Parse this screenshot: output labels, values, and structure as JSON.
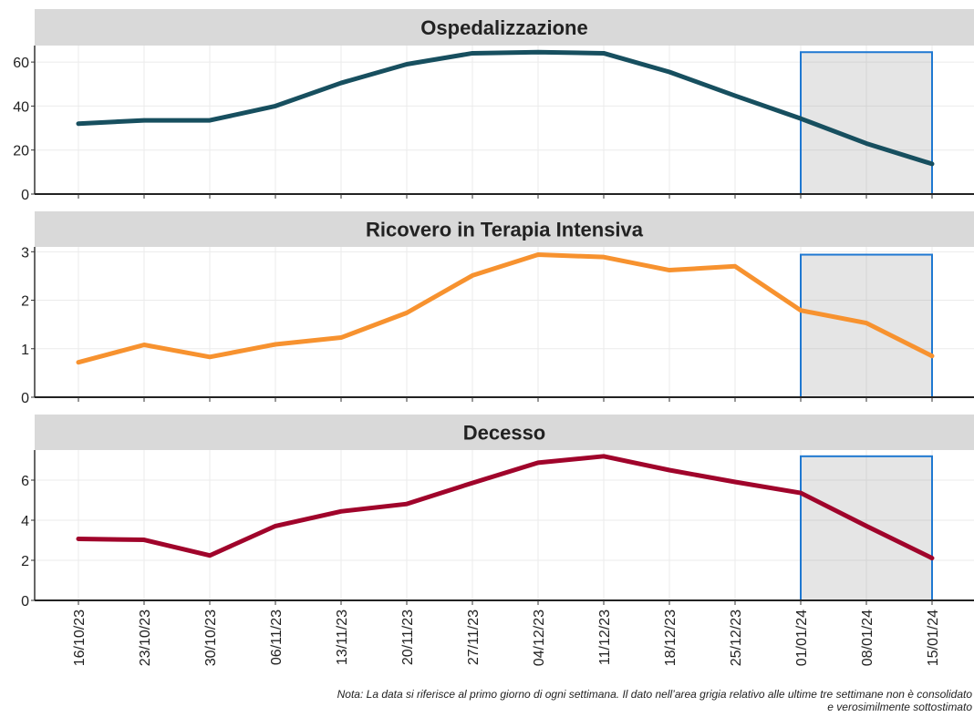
{
  "chart_data": [
    {
      "type": "line",
      "title": "Ospedalizzazione",
      "color": "#174f5f",
      "values": [
        32,
        33.5,
        33.5,
        40,
        50.5,
        59,
        64,
        64.5,
        64,
        55.5,
        44.7,
        34.3,
        23,
        13.7
      ],
      "ylim": [
        0,
        67.5
      ],
      "yticks": [
        0,
        20,
        40,
        60
      ],
      "grid": true
    },
    {
      "type": "line",
      "title": "Ricovero in Terapia Intensiva",
      "color": "#f7922f",
      "values": [
        0.72,
        1.08,
        0.83,
        1.09,
        1.23,
        1.74,
        2.51,
        2.94,
        2.89,
        2.62,
        2.7,
        1.79,
        1.53,
        0.85
      ],
      "ylim": [
        0,
        3.1
      ],
      "yticks": [
        0,
        1,
        2,
        3
      ],
      "grid": true
    },
    {
      "type": "line",
      "title": "Decesso",
      "color": "#a0042b",
      "categories": [
        "16/10/23",
        "23/10/23",
        "30/10/23",
        "06/11/23",
        "13/11/23",
        "20/11/23",
        "27/11/23",
        "04/12/23",
        "11/12/23",
        "18/12/23",
        "25/12/23",
        "01/01/24",
        "08/01/24",
        "15/01/24"
      ],
      "values": [
        3.07,
        3.02,
        2.24,
        3.71,
        4.44,
        4.81,
        5.86,
        6.87,
        7.19,
        6.5,
        5.91,
        5.36,
        3.71,
        2.11
      ],
      "ylim": [
        0,
        7.5
      ],
      "yticks": [
        0,
        2,
        4,
        6
      ],
      "grid": true
    }
  ],
  "note": [
    "Nota: La data si riferisce al primo giorno di ogni settimana. Il dato nell’area grigia relativo alle ultime tre settimane non è consolidato",
    "e verosimilmente sottostimato"
  ]
}
